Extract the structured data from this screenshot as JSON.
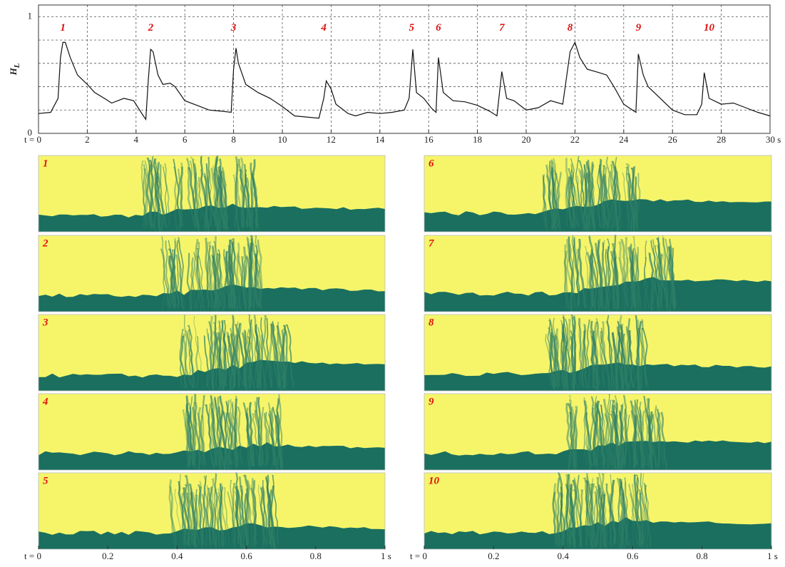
{
  "chart_data": [
    {
      "type": "line",
      "ylabel": "H",
      "ylabel_subscript": "L",
      "xlim": [
        0,
        30
      ],
      "ylim": [
        0,
        1.1
      ],
      "xticks": [
        {
          "value": 0,
          "label": "t = 0"
        },
        2,
        4,
        6,
        8,
        10,
        12,
        14,
        16,
        18,
        20,
        22,
        24,
        26,
        28,
        {
          "value": 30,
          "label": "30 s"
        }
      ],
      "yticks": [
        0,
        1
      ],
      "minor_yticks": [
        0.2,
        0.4,
        0.6,
        0.8
      ],
      "grid": true,
      "annotations": [
        {
          "text": "1",
          "x": 1.0,
          "y": 0.9
        },
        {
          "text": "2",
          "x": 4.6,
          "y": 0.9
        },
        {
          "text": "3",
          "x": 8.0,
          "y": 0.9
        },
        {
          "text": "4",
          "x": 11.7,
          "y": 0.9
        },
        {
          "text": "5",
          "x": 15.3,
          "y": 0.9
        },
        {
          "text": "6",
          "x": 16.4,
          "y": 0.9
        },
        {
          "text": "7",
          "x": 19.0,
          "y": 0.9
        },
        {
          "text": "8",
          "x": 21.8,
          "y": 0.9
        },
        {
          "text": "9",
          "x": 24.6,
          "y": 0.9
        },
        {
          "text": "10",
          "x": 27.5,
          "y": 0.9
        }
      ],
      "series": [
        {
          "color": "#111111",
          "x": [
            0,
            0.5,
            0.8,
            0.9,
            1.0,
            1.1,
            1.3,
            1.6,
            2.0,
            2.3,
            2.7,
            3.0,
            3.5,
            3.9,
            4.3,
            4.4,
            4.5,
            4.6,
            4.7,
            4.9,
            5.1,
            5.4,
            5.6,
            6.0,
            6.5,
            7.0,
            7.5,
            7.9,
            8.0,
            8.1,
            8.2,
            8.5,
            9.0,
            9.5,
            10.0,
            10.5,
            11.0,
            11.5,
            11.7,
            11.8,
            12.0,
            12.2,
            12.7,
            13.0,
            13.5,
            14.0,
            14.5,
            15.0,
            15.2,
            15.35,
            15.5,
            15.8,
            16.1,
            16.3,
            16.4,
            16.6,
            17.0,
            17.5,
            18.0,
            18.5,
            18.8,
            19.0,
            19.2,
            19.5,
            20.0,
            20.5,
            21.0,
            21.5,
            21.8,
            22.0,
            22.2,
            22.5,
            23.0,
            23.3,
            23.6,
            24.0,
            24.5,
            24.6,
            24.8,
            25.0,
            25.5,
            26.0,
            26.5,
            27.0,
            27.2,
            27.3,
            27.5,
            28.0,
            28.5,
            29.0,
            29.5,
            30.0
          ],
          "values": [
            0.17,
            0.18,
            0.3,
            0.65,
            0.78,
            0.78,
            0.65,
            0.5,
            0.42,
            0.35,
            0.3,
            0.26,
            0.3,
            0.28,
            0.15,
            0.12,
            0.45,
            0.72,
            0.7,
            0.5,
            0.42,
            0.43,
            0.4,
            0.28,
            0.24,
            0.2,
            0.19,
            0.18,
            0.55,
            0.73,
            0.6,
            0.42,
            0.35,
            0.3,
            0.23,
            0.15,
            0.14,
            0.13,
            0.3,
            0.45,
            0.38,
            0.25,
            0.17,
            0.15,
            0.18,
            0.17,
            0.18,
            0.2,
            0.3,
            0.72,
            0.35,
            0.3,
            0.22,
            0.18,
            0.65,
            0.35,
            0.28,
            0.27,
            0.24,
            0.19,
            0.15,
            0.53,
            0.3,
            0.28,
            0.2,
            0.22,
            0.28,
            0.25,
            0.7,
            0.78,
            0.65,
            0.55,
            0.52,
            0.5,
            0.4,
            0.25,
            0.18,
            0.68,
            0.5,
            0.4,
            0.3,
            0.2,
            0.16,
            0.16,
            0.25,
            0.52,
            0.3,
            0.25,
            0.26,
            0.22,
            0.18,
            0.15
          ]
        }
      ]
    },
    {
      "type": "image-panels",
      "panels": [
        "1",
        "2",
        "3",
        "4",
        "5",
        "6",
        "7",
        "8",
        "9",
        "10"
      ],
      "xlim": [
        0,
        1
      ],
      "xticks": [
        {
          "value": 0,
          "label": "t = 0"
        },
        0.2,
        0.4,
        0.6,
        0.8,
        {
          "value": 1,
          "label": "1 s"
        }
      ]
    }
  ]
}
